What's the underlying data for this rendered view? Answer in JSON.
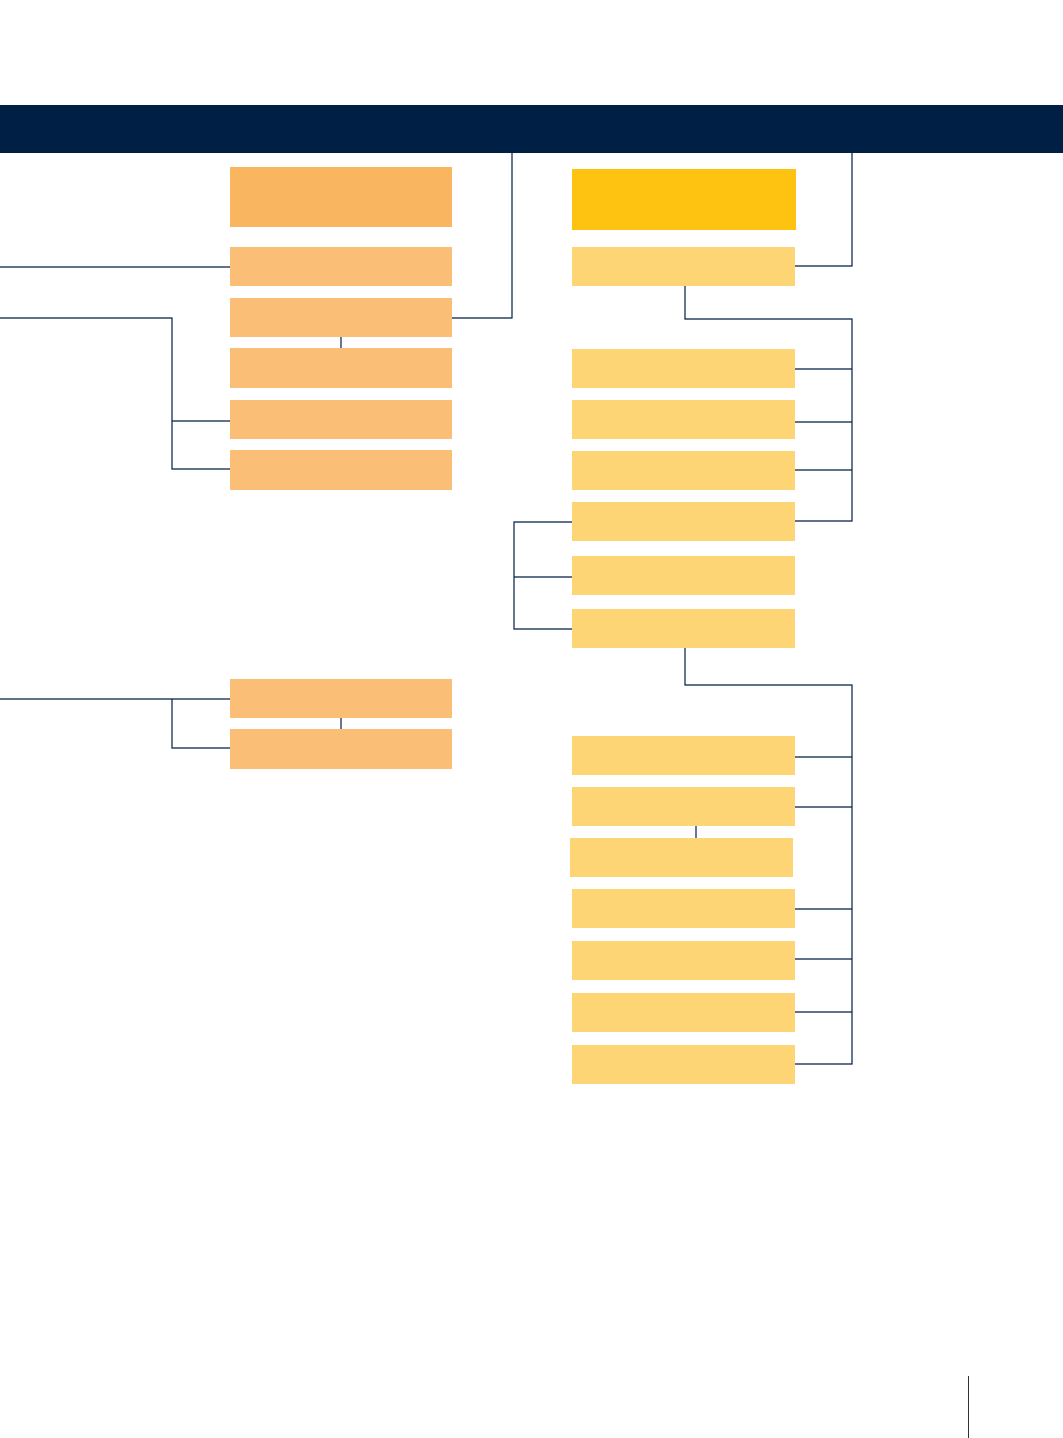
{
  "colors": {
    "header": "#001f45",
    "connector": "#001f45",
    "left_head_box": "#f9b560",
    "left_box": "#fbbe76",
    "right_head_box": "#fec310",
    "right_box": "#fdd575"
  },
  "header": {
    "title": ""
  },
  "left_column": {
    "head": {
      "label": ""
    },
    "boxes": [
      {
        "label": ""
      },
      {
        "label": ""
      },
      {
        "label": ""
      },
      {
        "label": ""
      },
      {
        "label": ""
      },
      {
        "label": ""
      },
      {
        "label": ""
      }
    ]
  },
  "right_column": {
    "head": {
      "label": ""
    },
    "boxes": [
      {
        "label": ""
      },
      {
        "label": ""
      },
      {
        "label": ""
      },
      {
        "label": ""
      },
      {
        "label": ""
      },
      {
        "label": ""
      },
      {
        "label": ""
      },
      {
        "label": ""
      },
      {
        "label": ""
      },
      {
        "label": ""
      },
      {
        "label": ""
      },
      {
        "label": ""
      },
      {
        "label": ""
      },
      {
        "label": ""
      }
    ]
  }
}
